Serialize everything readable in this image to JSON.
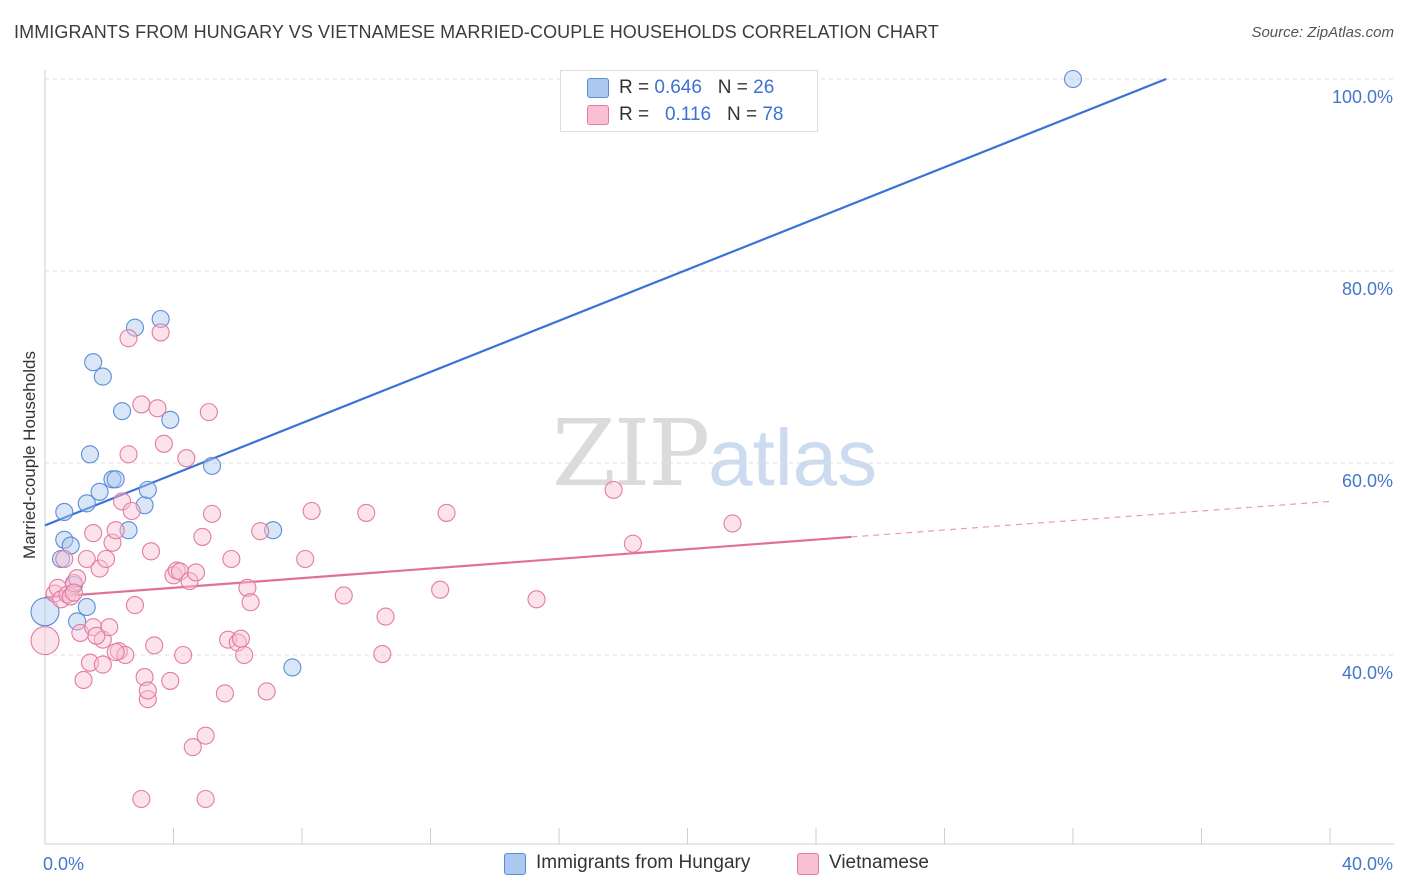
{
  "header": {
    "title": "IMMIGRANTS FROM HUNGARY VS VIETNAMESE MARRIED-COUPLE HOUSEHOLDS CORRELATION CHART",
    "source": "Source: ZipAtlas.com"
  },
  "watermark": {
    "zip": "ZIP",
    "atlas": "atlas"
  },
  "legend": {
    "rows": [
      {
        "r_label": "R =",
        "r_value": "0.646",
        "n_label": "N =",
        "n_value": "26",
        "color": "#aac8f0",
        "border": "#5b8dd6"
      },
      {
        "r_label": "R =",
        "r_value": "0.116",
        "n_label": "N =",
        "n_value": "78",
        "color": "#f8c0d2",
        "border": "#e27ca0"
      }
    ]
  },
  "bottom_legend": {
    "items": [
      {
        "label": "Immigrants from Hungary",
        "color": "#aac8f0",
        "border": "#5b8dd6"
      },
      {
        "label": "Vietnamese",
        "color": "#f8c0d2",
        "border": "#e27ca0"
      }
    ]
  },
  "chart_data": {
    "type": "scatter",
    "title": "IMMIGRANTS FROM HUNGARY VS VIETNAMESE MARRIED-COUPLE HOUSEHOLDS CORRELATION CHART",
    "xlabel": "",
    "ylabel": "Married-couple Households",
    "xlim": [
      0,
      40
    ],
    "ylim": [
      20,
      102
    ],
    "x_tick_labels": [
      "0.0%",
      "40.0%"
    ],
    "y_ticks": [
      40,
      60,
      80,
      100
    ],
    "y_tick_labels": [
      "40.0%",
      "60.0%",
      "80.0%",
      "100.0%"
    ],
    "grid": true,
    "legend_position": "top-center",
    "colors": {
      "hungary": "#3a72d6",
      "vietnamese": "#e0709a"
    },
    "series": [
      {
        "name": "Immigrants from Hungary",
        "color": "#3a72d6",
        "trend": {
          "x": [
            0,
            34.9
          ],
          "y": [
            53.5,
            100
          ],
          "dashed_extension_to": null
        },
        "points": [
          [
            0.0,
            44.5
          ],
          [
            0.5,
            50.0
          ],
          [
            0.6,
            52.0
          ],
          [
            0.6,
            54.9
          ],
          [
            0.8,
            51.4
          ],
          [
            0.9,
            47.3
          ],
          [
            1.0,
            43.5
          ],
          [
            1.3,
            45.0
          ],
          [
            1.3,
            55.8
          ],
          [
            1.4,
            60.9
          ],
          [
            1.5,
            70.5
          ],
          [
            1.7,
            57.0
          ],
          [
            1.8,
            69.0
          ],
          [
            2.1,
            58.3
          ],
          [
            2.2,
            58.3
          ],
          [
            2.4,
            65.4
          ],
          [
            2.6,
            53.0
          ],
          [
            2.8,
            74.1
          ],
          [
            3.1,
            55.6
          ],
          [
            3.2,
            57.2
          ],
          [
            3.6,
            75.0
          ],
          [
            3.9,
            64.5
          ],
          [
            5.2,
            59.7
          ],
          [
            7.1,
            53.0
          ],
          [
            7.7,
            38.7
          ],
          [
            32.0,
            100.0
          ]
        ]
      },
      {
        "name": "Vietnamese",
        "color": "#e0709a",
        "trend": {
          "x": [
            0,
            25.1
          ],
          "y": [
            46.0,
            52.3
          ],
          "dashed_extension_to": [
            40,
            56.0
          ]
        },
        "points": [
          [
            0.0,
            41.5
          ],
          [
            0.3,
            46.4
          ],
          [
            0.4,
            47.0
          ],
          [
            0.5,
            45.8
          ],
          [
            0.6,
            50.0
          ],
          [
            0.7,
            46.3
          ],
          [
            0.8,
            46.1
          ],
          [
            0.9,
            47.5
          ],
          [
            1.0,
            48.0
          ],
          [
            1.1,
            42.3
          ],
          [
            1.2,
            37.4
          ],
          [
            1.3,
            50.0
          ],
          [
            1.4,
            39.2
          ],
          [
            1.5,
            42.9
          ],
          [
            1.5,
            52.7
          ],
          [
            1.7,
            49.0
          ],
          [
            1.8,
            41.6
          ],
          [
            1.8,
            39.0
          ],
          [
            1.9,
            50.0
          ],
          [
            2.0,
            42.9
          ],
          [
            2.1,
            51.7
          ],
          [
            2.2,
            53.0
          ],
          [
            2.3,
            40.4
          ],
          [
            2.4,
            56.0
          ],
          [
            2.5,
            40.0
          ],
          [
            2.6,
            60.9
          ],
          [
            2.6,
            73.0
          ],
          [
            2.7,
            55.0
          ],
          [
            2.8,
            45.2
          ],
          [
            3.0,
            66.1
          ],
          [
            3.1,
            37.7
          ],
          [
            3.2,
            35.4
          ],
          [
            3.2,
            36.3
          ],
          [
            3.3,
            50.8
          ],
          [
            3.4,
            41.0
          ],
          [
            3.5,
            65.7
          ],
          [
            3.6,
            73.6
          ],
          [
            3.7,
            62.0
          ],
          [
            3.9,
            37.3
          ],
          [
            4.0,
            48.3
          ],
          [
            4.1,
            48.8
          ],
          [
            4.2,
            48.7
          ],
          [
            4.3,
            40.0
          ],
          [
            4.4,
            60.5
          ],
          [
            4.5,
            47.7
          ],
          [
            4.7,
            48.6
          ],
          [
            4.9,
            52.3
          ],
          [
            5.0,
            31.6
          ],
          [
            5.1,
            65.3
          ],
          [
            5.2,
            54.7
          ],
          [
            5.6,
            36.0
          ],
          [
            5.7,
            41.6
          ],
          [
            5.8,
            50.0
          ],
          [
            6.0,
            41.3
          ],
          [
            6.1,
            41.7
          ],
          [
            6.2,
            40.0
          ],
          [
            6.3,
            47.0
          ],
          [
            6.4,
            45.5
          ],
          [
            6.7,
            52.9
          ],
          [
            6.9,
            36.2
          ],
          [
            8.1,
            50.0
          ],
          [
            8.3,
            55.0
          ],
          [
            9.3,
            46.2
          ],
          [
            10.0,
            54.8
          ],
          [
            10.5,
            40.1
          ],
          [
            10.6,
            44.0
          ],
          [
            12.3,
            46.8
          ],
          [
            12.5,
            54.8
          ],
          [
            15.3,
            45.8
          ],
          [
            17.7,
            57.2
          ],
          [
            18.3,
            51.6
          ],
          [
            21.4,
            53.7
          ],
          [
            3.0,
            25.0
          ],
          [
            5.0,
            25.0
          ],
          [
            4.6,
            30.4
          ],
          [
            1.6,
            42.0
          ],
          [
            2.2,
            40.3
          ],
          [
            0.9,
            46.5
          ]
        ]
      }
    ]
  }
}
